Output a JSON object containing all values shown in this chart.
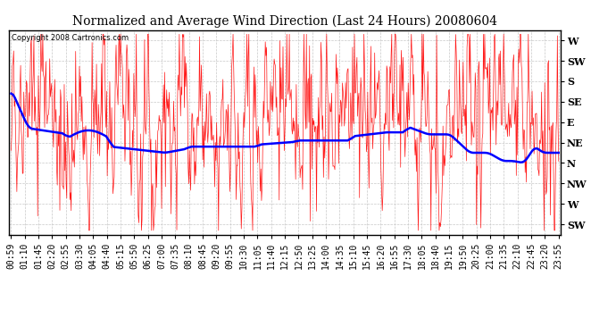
{
  "title": "Normalized and Average Wind Direction (Last 24 Hours) 20080604",
  "copyright": "Copyright 2008 Cartronics.com",
  "y_labels": [
    "W",
    "SW",
    "S",
    "SE",
    "E",
    "NE",
    "N",
    "NW",
    "W",
    "SW"
  ],
  "y_ticks": [
    9,
    8,
    7,
    6,
    5,
    4,
    3,
    2,
    1,
    0
  ],
  "ylim": [
    -0.5,
    9.5
  ],
  "x_labels": [
    "00:59",
    "01:10",
    "01:45",
    "02:20",
    "02:55",
    "03:30",
    "04:05",
    "04:40",
    "05:15",
    "05:50",
    "06:25",
    "07:00",
    "07:35",
    "08:10",
    "08:45",
    "09:20",
    "09:55",
    "10:30",
    "11:05",
    "11:40",
    "12:15",
    "12:50",
    "13:25",
    "14:00",
    "14:35",
    "15:10",
    "15:45",
    "16:20",
    "16:55",
    "17:30",
    "18:05",
    "18:40",
    "19:15",
    "19:50",
    "20:25",
    "21:00",
    "21:35",
    "22:10",
    "22:45",
    "23:20",
    "23:55"
  ],
  "background_color": "#ffffff",
  "grid_color": "#c8c8c8",
  "line_color_red": "#ff0000",
  "line_color_blue": "#0000ff",
  "fig_width": 6.9,
  "fig_height": 3.75,
  "dpi": 100
}
